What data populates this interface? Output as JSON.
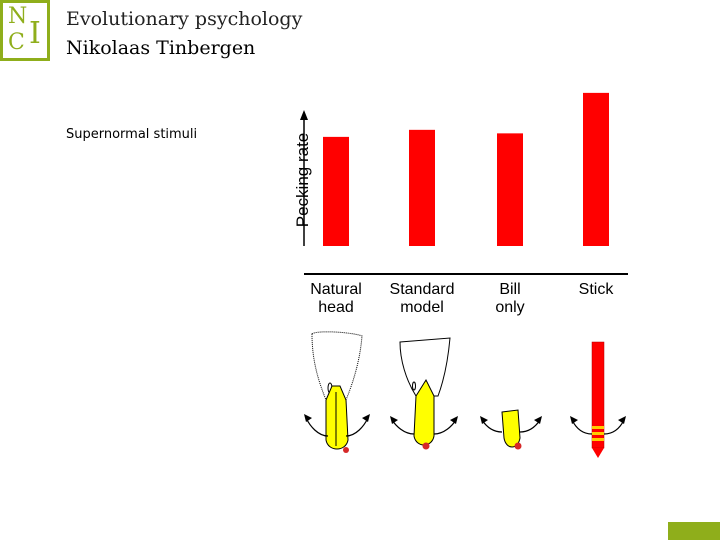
{
  "header": {
    "title": "Evolutionary psychology",
    "subtitle": "Nikolaas Tinbergen"
  },
  "logo": {
    "letters": [
      "N",
      "C",
      "I"
    ],
    "color": "#8fae1b"
  },
  "caption": "Supernormal stimuli",
  "chart_data": {
    "type": "bar",
    "ylabel": "Pecking rate",
    "xlabel": "",
    "title": "",
    "categories": [
      "Natural\nhead",
      "Standard\nmodel",
      "Bill\nonly",
      "Stick"
    ],
    "values": [
      0.62,
      0.66,
      0.64,
      0.87
    ],
    "ylim": [
      0,
      1
    ],
    "bar_color": "#ff0000",
    "grid": false
  },
  "colors": {
    "accent": "#8fae1b",
    "bar": "#ff0000",
    "bill_yellow": "#ffff00",
    "stick_band": "#ffcc00"
  }
}
